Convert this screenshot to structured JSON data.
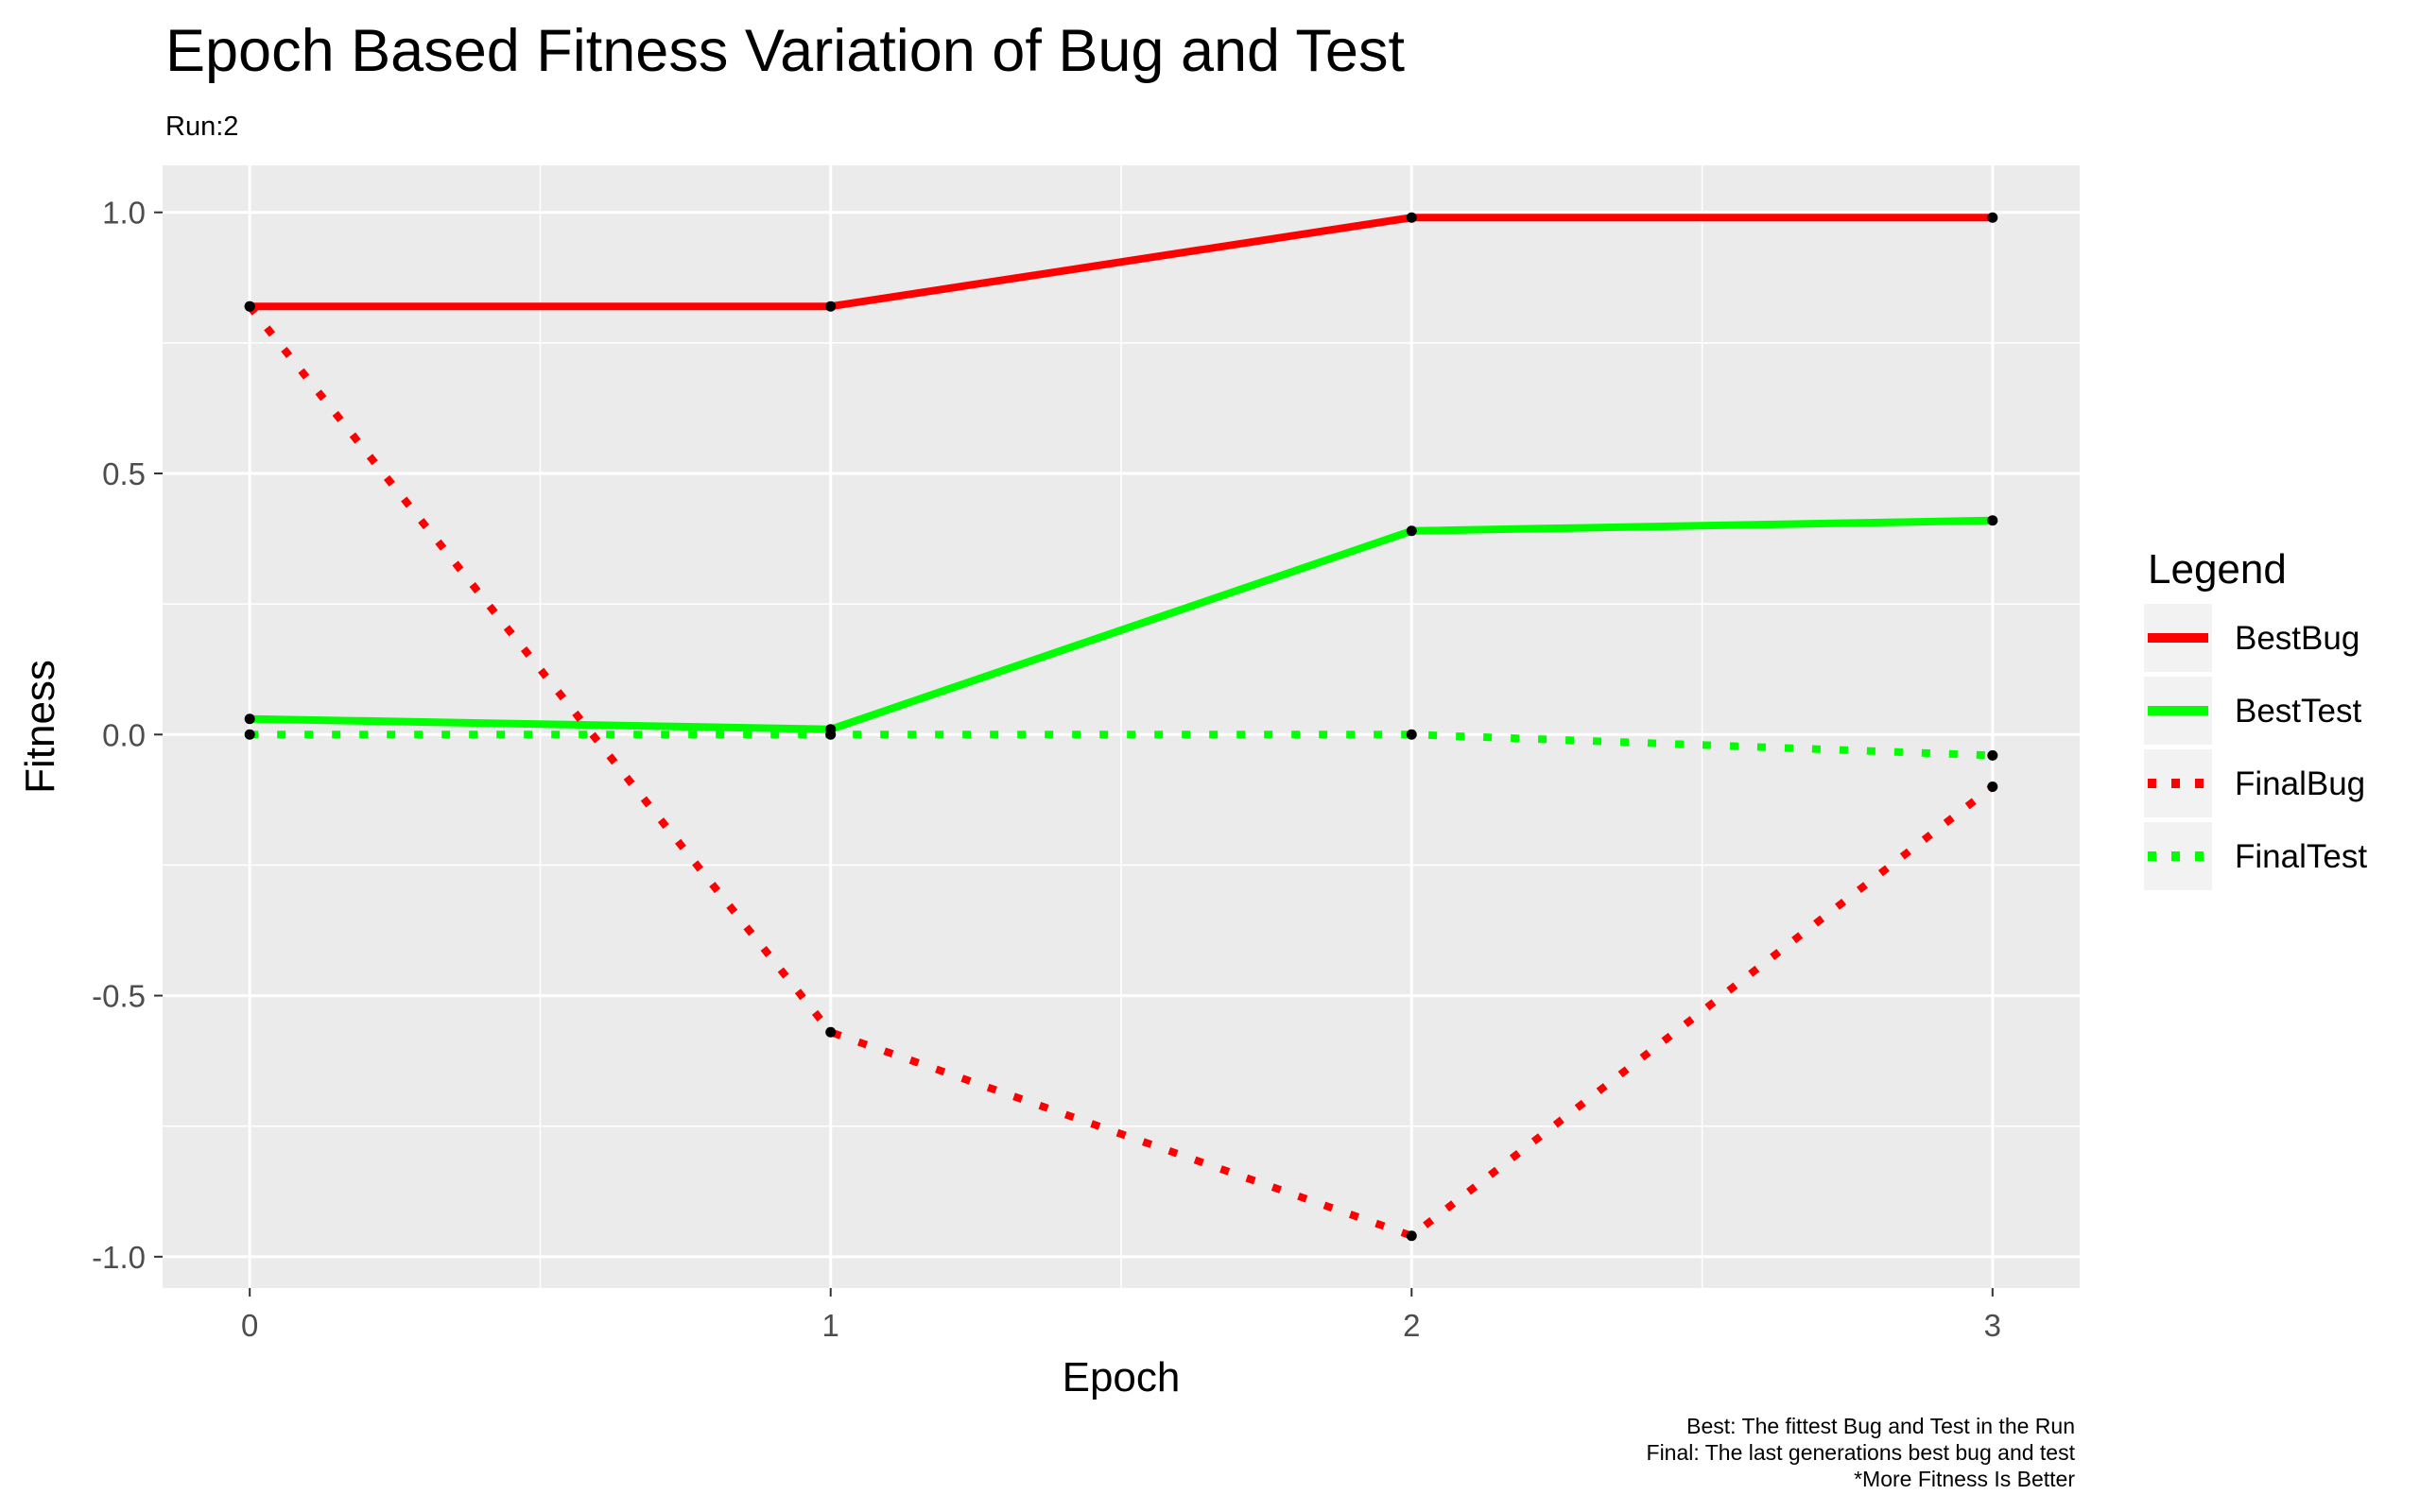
{
  "chart_data": {
    "type": "line",
    "title": "Epoch Based Fitness Variation of Bug and Test",
    "subtitle": "Run:2",
    "xlabel": "Epoch",
    "ylabel": "Fitness",
    "x": [
      0,
      1,
      2,
      3
    ],
    "x_ticks": [
      "0",
      "1",
      "2",
      "3"
    ],
    "y_ticks": [
      "-1.0",
      "-0.5",
      "0.0",
      "0.5",
      "1.0"
    ],
    "xlim": [
      -0.15,
      3.15
    ],
    "ylim": [
      -1.06,
      1.09
    ],
    "grid": true,
    "legend_title": "Legend",
    "legend_position": "right",
    "series": [
      {
        "name": "BestBug",
        "values": [
          0.82,
          0.82,
          0.99,
          0.99
        ],
        "color": "#ff0000",
        "linetype": "solid"
      },
      {
        "name": "BestTest",
        "values": [
          0.03,
          0.01,
          0.39,
          0.41
        ],
        "color": "#00ff00",
        "linetype": "solid"
      },
      {
        "name": "FinalBug",
        "values": [
          0.82,
          -0.57,
          -0.96,
          -0.1
        ],
        "color": "#ff0000",
        "linetype": "dotted"
      },
      {
        "name": "FinalTest",
        "values": [
          0.0,
          0.0,
          0.0,
          -0.04
        ],
        "color": "#00ff00",
        "linetype": "dotted"
      }
    ],
    "caption": [
      "Best: The fittest Bug and Test in the Run",
      "Final: The last generations best bug and test",
      "*More Fitness Is Better"
    ]
  }
}
